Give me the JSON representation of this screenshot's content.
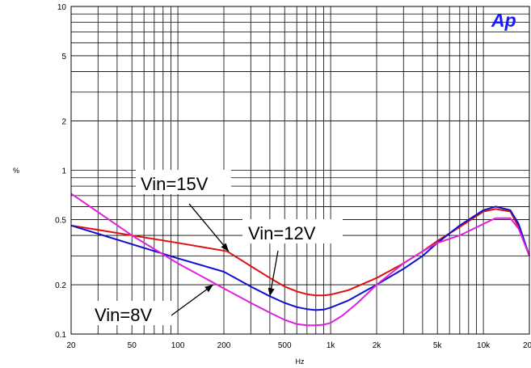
{
  "chart_data": {
    "type": "line",
    "xlabel": "Hz",
    "ylabel": "%",
    "xscale": "log",
    "yscale": "log",
    "xlim": [
      20,
      20000
    ],
    "ylim": [
      0.1,
      10
    ],
    "grid": true,
    "x_ticks": [
      {
        "value": 20,
        "label": "20"
      },
      {
        "value": 50,
        "label": "50"
      },
      {
        "value": 100,
        "label": "100"
      },
      {
        "value": 200,
        "label": "200"
      },
      {
        "value": 500,
        "label": "500"
      },
      {
        "value": 1000,
        "label": "1k"
      },
      {
        "value": 2000,
        "label": "2k"
      },
      {
        "value": 5000,
        "label": "5k"
      },
      {
        "value": 10000,
        "label": "10k"
      },
      {
        "value": 20000,
        "label": "20k"
      }
    ],
    "y_ticks": [
      {
        "value": 0.1,
        "label": "0.1"
      },
      {
        "value": 0.2,
        "label": "0.2"
      },
      {
        "value": 0.5,
        "label": "0.5"
      },
      {
        "value": 1,
        "label": "1"
      },
      {
        "value": 2,
        "label": "2"
      },
      {
        "value": 5,
        "label": "5"
      },
      {
        "value": 10,
        "label": "10"
      }
    ],
    "series": [
      {
        "name": "Vin=15V",
        "color": "#e01010",
        "x": [
          20,
          100,
          210,
          300,
          400,
          500,
          600,
          700,
          800,
          900,
          1000,
          1300,
          2000,
          3000,
          4000,
          5000,
          7000,
          10000,
          12000,
          15000,
          17000,
          20000
        ],
        "y": [
          0.46,
          0.36,
          0.32,
          0.26,
          0.22,
          0.195,
          0.182,
          0.175,
          0.172,
          0.172,
          0.174,
          0.185,
          0.22,
          0.27,
          0.32,
          0.37,
          0.45,
          0.56,
          0.58,
          0.56,
          0.45,
          0.3
        ]
      },
      {
        "name": "Vin=12V",
        "color": "#1010d0",
        "x": [
          20,
          100,
          200,
          300,
          400,
          500,
          600,
          700,
          800,
          900,
          1000,
          1300,
          2000,
          3000,
          4000,
          5000,
          7000,
          10000,
          12000,
          15000,
          17000,
          20000
        ],
        "y": [
          0.46,
          0.29,
          0.24,
          0.195,
          0.17,
          0.155,
          0.146,
          0.142,
          0.14,
          0.141,
          0.145,
          0.16,
          0.2,
          0.25,
          0.3,
          0.36,
          0.46,
          0.57,
          0.6,
          0.57,
          0.47,
          0.3
        ]
      },
      {
        "name": "Vin=8V",
        "color": "#e020e0",
        "x": [
          20,
          50,
          100,
          200,
          300,
          400,
          500,
          600,
          700,
          800,
          900,
          1000,
          1200,
          1500,
          2000,
          3000,
          4000,
          5000,
          7000,
          10000,
          12000,
          15000,
          17000,
          20000
        ],
        "y": [
          0.72,
          0.4,
          0.27,
          0.19,
          0.155,
          0.135,
          0.122,
          0.115,
          0.113,
          0.113,
          0.114,
          0.117,
          0.13,
          0.155,
          0.2,
          0.27,
          0.32,
          0.36,
          0.4,
          0.47,
          0.51,
          0.51,
          0.44,
          0.3
        ]
      }
    ],
    "annotations": [
      {
        "text": "Vin=15V",
        "series": "Vin=15V",
        "x": 215,
        "y": 0.32
      },
      {
        "text": "Vin=12V",
        "series": "Vin=12V",
        "x": 400,
        "y": 0.17
      },
      {
        "text": "Vin=8V",
        "series": "Vin=8V",
        "x": 170,
        "y": 0.2
      }
    ],
    "logo_text": "Ap",
    "logo_color": "#1a1aff"
  }
}
